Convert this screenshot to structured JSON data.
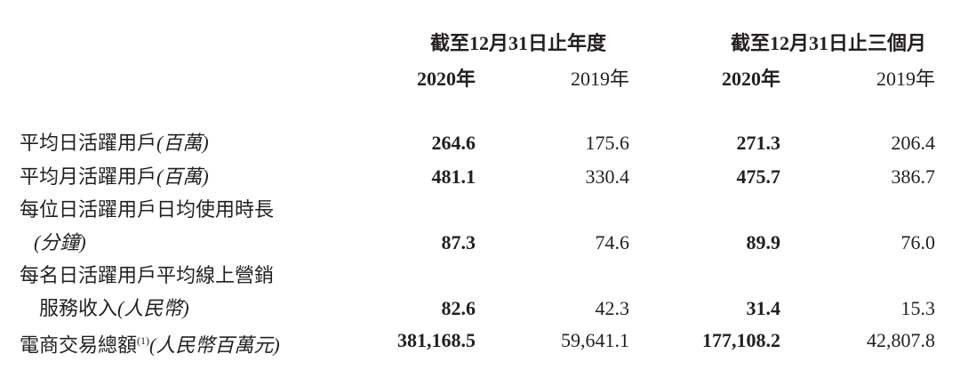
{
  "header": {
    "groups": [
      "截至12月31日止年度",
      "截至12月31日止三個月"
    ],
    "years": [
      "2020年",
      "2019年",
      "2020年",
      "2019年"
    ]
  },
  "table": {
    "rows": [
      {
        "label": "平均日活躍用戶",
        "unit": "(百萬)",
        "values": [
          "264.6",
          "175.6",
          "271.3",
          "206.4"
        ]
      },
      {
        "label": "平均月活躍用戶",
        "unit": "(百萬)",
        "values": [
          "481.1",
          "330.4",
          "475.7",
          "386.7"
        ]
      },
      {
        "label": "每位日活躍用戶日均使用時長",
        "unit": "(分鐘)",
        "values": [
          "87.3",
          "74.6",
          "89.9",
          "76.0"
        ]
      },
      {
        "label": "每名日活躍用戶平均線上營銷",
        "label2": "服務收入",
        "unit": "(人民幣)",
        "values": [
          "82.6",
          "42.3",
          "31.4",
          "15.3"
        ]
      },
      {
        "label": "電商交易總額",
        "note": "(1)",
        "unit": "(人民幣百萬元)",
        "values": [
          "381,168.5",
          "59,641.1",
          "177,108.2",
          "42,807.8"
        ]
      }
    ]
  }
}
